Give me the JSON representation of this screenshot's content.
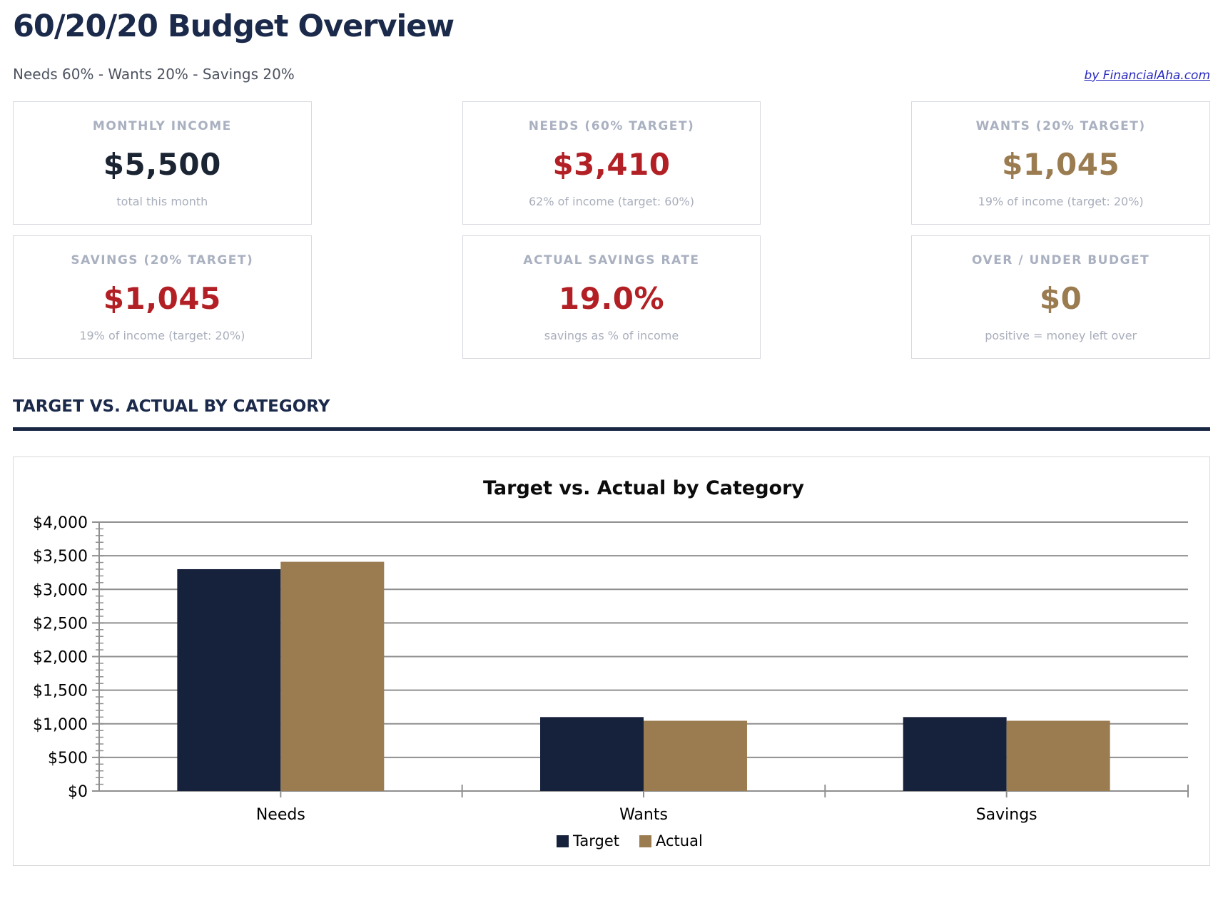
{
  "page": {
    "title": "60/20/20 Budget Overview",
    "subtitle": "Needs 60% - Wants 20% - Savings 20%",
    "credit_link": "by FinancialAha.com"
  },
  "colors": {
    "navy": "#16213C",
    "tan": "#9A7C50",
    "red": "#B22025",
    "heading_navy": "#1B2A4A",
    "label_gray": "#A9B0C0",
    "link_blue": "#2929C0",
    "grid_gray": "#8F8F8F"
  },
  "cards": [
    {
      "label": "MONTHLY INCOME",
      "value": "$5,500",
      "sub": "total this month",
      "value_color": "#1B2433"
    },
    {
      "label": "NEEDS (60% TARGET)",
      "value": "$3,410",
      "sub": "62% of income (target: 60%)",
      "value_color": "#B22025"
    },
    {
      "label": "WANTS (20% TARGET)",
      "value": "$1,045",
      "sub": "19% of income (target: 20%)",
      "value_color": "#9A7C50"
    },
    {
      "label": "SAVINGS (20% TARGET)",
      "value": "$1,045",
      "sub": "19% of income (target: 20%)",
      "value_color": "#B22025"
    },
    {
      "label": "ACTUAL SAVINGS RATE",
      "value": "19.0%",
      "sub": "savings as % of income",
      "value_color": "#B22025"
    },
    {
      "label": "OVER / UNDER BUDGET",
      "value": "$0",
      "sub": "positive = money left over",
      "value_color": "#9A7C50"
    }
  ],
  "section": {
    "heading": "TARGET VS. ACTUAL BY CATEGORY"
  },
  "chart_data": {
    "type": "bar",
    "title": "Target vs. Actual by Category",
    "categories": [
      "Needs",
      "Wants",
      "Savings"
    ],
    "series": [
      {
        "name": "Target",
        "color": "#16213C",
        "values": [
          3300,
          1100,
          1100
        ]
      },
      {
        "name": "Actual",
        "color": "#9A7C50",
        "values": [
          3410,
          1045,
          1045
        ]
      }
    ],
    "xlabel": "",
    "ylabel": "",
    "ylim": [
      0,
      4000
    ],
    "ytick_step": 500,
    "minor_tick_step": 100,
    "ytick_prefix": "$",
    "grid": true,
    "legend_position": "bottom"
  }
}
